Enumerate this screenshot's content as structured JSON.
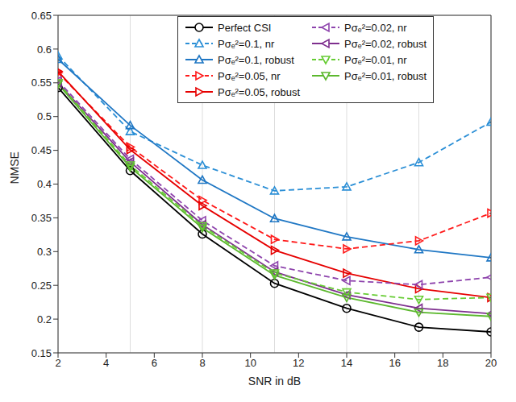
{
  "chart_data": {
    "type": "line",
    "x_label": "SNR in dB",
    "y_label": "NMSE",
    "x": [
      2,
      5,
      8,
      11,
      14,
      17,
      20
    ],
    "xlim": [
      2,
      20
    ],
    "xticks": [
      2,
      4,
      6,
      8,
      10,
      12,
      14,
      16,
      18,
      20
    ],
    "ylim": [
      0.15,
      0.65
    ],
    "yticks": [
      0.15,
      0.2,
      0.25,
      0.3,
      0.35,
      0.4,
      0.45,
      0.5,
      0.55,
      0.6,
      0.65
    ],
    "grid": true,
    "legend": "top",
    "series": [
      {
        "name": "Perfect CSI",
        "color": "#000000",
        "marker": "circle",
        "line_style": "solid",
        "values": [
          0.543,
          0.42,
          0.326,
          0.253,
          0.216,
          0.188,
          0.181
        ]
      },
      {
        "name": "Pσₑ²=0.1, nr",
        "color": "#2b8fd6",
        "marker": "triangle-up",
        "line_style": "dashed",
        "values": [
          0.59,
          0.478,
          0.428,
          0.39,
          0.396,
          0.432,
          0.492
        ]
      },
      {
        "name": "Pσₑ²=0.1, robust",
        "color": "#1f77c4",
        "marker": "triangle-up",
        "line_style": "solid",
        "values": [
          0.585,
          0.487,
          0.406,
          0.349,
          0.322,
          0.303,
          0.291
        ]
      },
      {
        "name": "Pσₑ²=0.05, nr",
        "color": "#ff1a1a",
        "marker": "triangle-right",
        "line_style": "dashed",
        "values": [
          0.565,
          0.455,
          0.376,
          0.318,
          0.304,
          0.316,
          0.357
        ]
      },
      {
        "name": "Pσₑ²=0.05, robust",
        "color": "#e60000",
        "marker": "triangle-right",
        "line_style": "solid",
        "values": [
          0.567,
          0.451,
          0.368,
          0.302,
          0.268,
          0.245,
          0.232
        ]
      },
      {
        "name": "Pσₑ²=0.02, nr",
        "color": "#8e44ad",
        "marker": "triangle-left",
        "line_style": "dashed",
        "values": [
          0.553,
          0.437,
          0.346,
          0.279,
          0.257,
          0.251,
          0.262
        ]
      },
      {
        "name": "Pσₑ²=0.02, robust",
        "color": "#7e2f8e",
        "marker": "triangle-left",
        "line_style": "solid",
        "values": [
          0.55,
          0.433,
          0.34,
          0.27,
          0.236,
          0.216,
          0.208
        ]
      },
      {
        "name": "Pσₑ²=0.01, nr",
        "color": "#66cc33",
        "marker": "triangle-down",
        "line_style": "dashed",
        "values": [
          0.55,
          0.428,
          0.338,
          0.268,
          0.24,
          0.229,
          0.232
        ]
      },
      {
        "name": "Pσₑ²=0.01, robust",
        "color": "#5cb82e",
        "marker": "triangle-down",
        "line_style": "solid",
        "values": [
          0.548,
          0.425,
          0.335,
          0.265,
          0.232,
          0.21,
          0.204
        ]
      }
    ]
  }
}
